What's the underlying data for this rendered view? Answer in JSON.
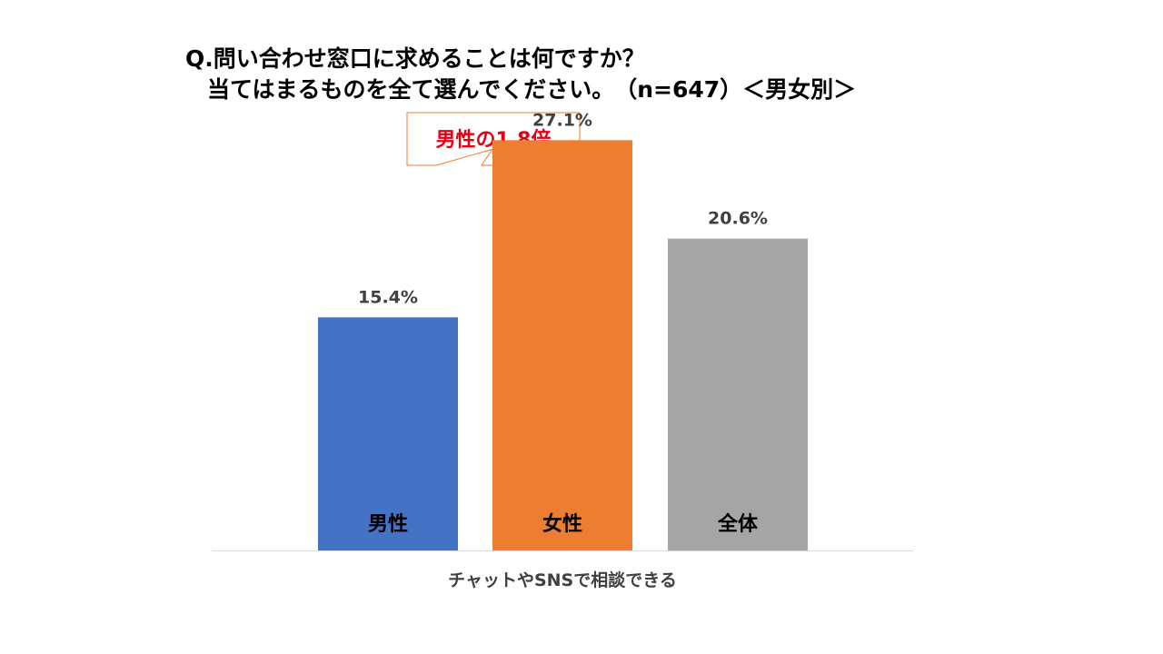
{
  "chart_data": {
    "type": "bar",
    "title_line1": "Q.問い合わせ窓口に求めることは何ですか？",
    "title_line2": "当てはまるものを全て選んでください。　（n=647）＜男女別＞",
    "xlabel": "チャットやSNSで相談できる",
    "ylabel": "",
    "ylim": [
      0,
      30
    ],
    "unit": "%",
    "categories": [
      "男性",
      "女性",
      "全体"
    ],
    "values": [
      15.4,
      27.1,
      20.6
    ],
    "value_labels": [
      "15.4%",
      "27.1%",
      "20.6%"
    ],
    "colors": [
      "#4472C4",
      "#ED7D31",
      "#A5A5A5"
    ],
    "callout": {
      "text": "男性の1.8倍",
      "target_category": "女性",
      "text_color": "#E60012",
      "border_color": "#ED7D31"
    },
    "label_color": "#404040",
    "category_label_color": "#000000",
    "axis_line_color": "#D9D9D9"
  }
}
